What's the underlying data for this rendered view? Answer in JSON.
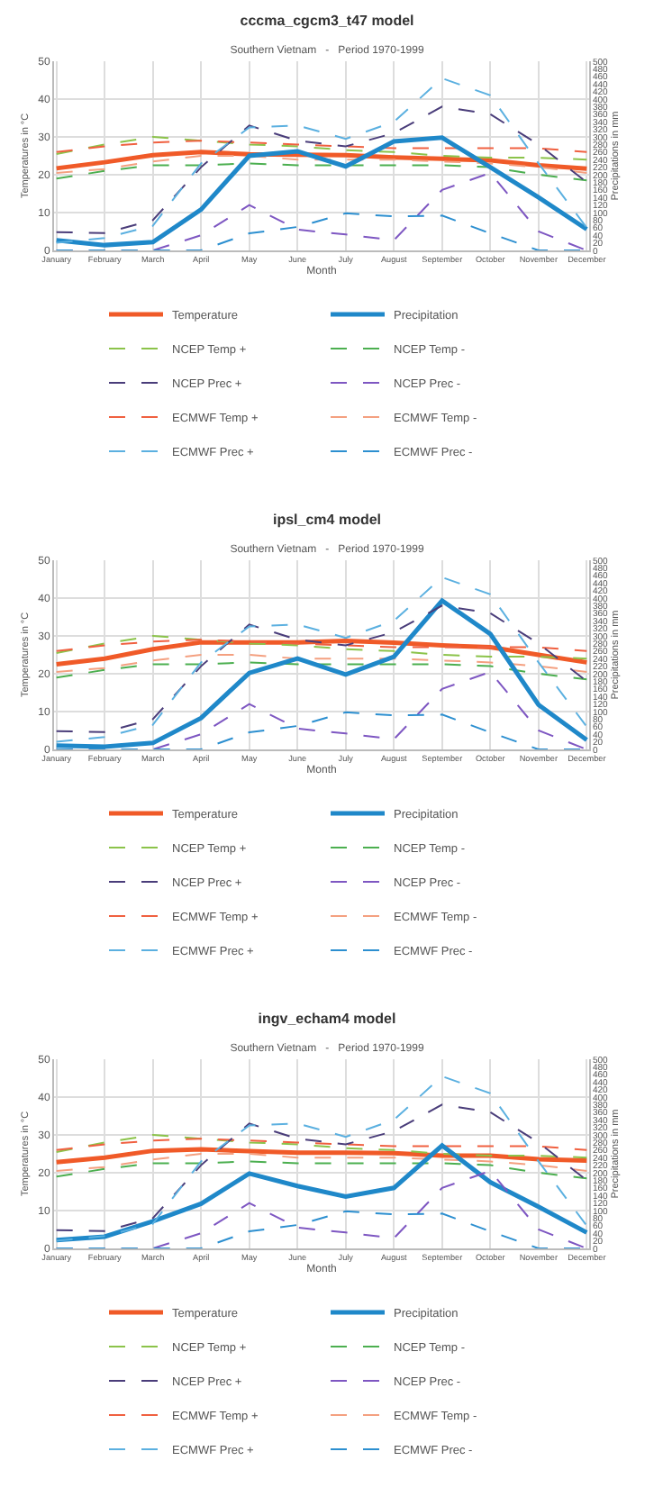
{
  "chart_data": [
    {
      "type": "line",
      "title": "cccma_cgcm3_t47 model",
      "subtitle": "Southern Vietnam   -   Period 1970-1999",
      "xlabel": "Month",
      "ylabel": "Temperatures in °C",
      "y2label": "Precipitations in mm",
      "categories": [
        "January",
        "February",
        "March",
        "April",
        "May",
        "June",
        "July",
        "August",
        "September",
        "October",
        "November",
        "December"
      ],
      "ylim": [
        0,
        50
      ],
      "yticks": [
        0,
        10,
        20,
        30,
        40,
        50
      ],
      "y2lim": [
        0,
        500
      ],
      "y2ticks": [
        0,
        20,
        40,
        60,
        80,
        100,
        120,
        140,
        160,
        180,
        200,
        220,
        240,
        260,
        280,
        300,
        320,
        340,
        360,
        380,
        400,
        420,
        440,
        460,
        480,
        500
      ],
      "grid": true,
      "legend": "bottom",
      "line_style": "solid",
      "series": [
        {
          "name": "Temperature",
          "color": "#f05a28",
          "values": [
            21.7,
            23.3,
            25.2,
            26,
            25.4,
            25.3,
            25.2,
            24.6,
            24.2,
            23.8,
            22.5,
            21.6
          ]
        },
        {
          "name": "Precipitation",
          "color": "#1f88c9",
          "axis": "y2",
          "values": [
            27,
            14,
            22,
            108,
            250,
            262,
            222,
            288,
            298,
            220,
            140,
            56
          ]
        },
        {
          "name": "NCEP Temp +",
          "color": "#8bc34a",
          "line_style": "dashed",
          "values": [
            25.5,
            28,
            30,
            29,
            28,
            27.5,
            26.5,
            26,
            25,
            24.5,
            24.5,
            24
          ]
        },
        {
          "name": "NCEP Temp -",
          "color": "#4caf50",
          "line_style": "dashed",
          "values": [
            19,
            21,
            22.5,
            22.5,
            23,
            22.5,
            22.5,
            22.5,
            22.5,
            22,
            20,
            18.5
          ]
        },
        {
          "name": "NCEP Prec +",
          "color": "#4a3d7a",
          "axis": "y2",
          "line_style": "dashed",
          "values": [
            48,
            46,
            80,
            220,
            330,
            290,
            275,
            310,
            380,
            360,
            280,
            180
          ]
        },
        {
          "name": "NCEP Prec -",
          "color": "#7e57c2",
          "axis": "y2",
          "line_style": "dashed",
          "values": [
            0,
            0,
            0,
            40,
            120,
            55,
            42,
            27,
            160,
            205,
            50,
            0
          ]
        },
        {
          "name": "ECMWF Temp +",
          "color": "#f06040",
          "line_style": "dashed",
          "values": [
            26,
            27.5,
            28.5,
            29,
            28.5,
            28,
            27.5,
            27,
            27,
            27,
            27,
            26
          ]
        },
        {
          "name": "ECMWF Temp -",
          "color": "#f4a080",
          "line_style": "dashed",
          "values": [
            20.5,
            21.5,
            23.5,
            25,
            25,
            24,
            24,
            24,
            23.5,
            23,
            22,
            20.5
          ]
        },
        {
          "name": "ECMWF Prec +",
          "color": "#5bb0e0",
          "axis": "y2",
          "line_style": "dashed",
          "values": [
            20,
            33,
            65,
            230,
            325,
            330,
            295,
            340,
            455,
            410,
            230,
            60
          ]
        },
        {
          "name": "ECMWF Prec -",
          "color": "#2c8fd0",
          "axis": "y2",
          "line_style": "dashed",
          "values": [
            0,
            0,
            0,
            0,
            45,
            62,
            98,
            90,
            92,
            45,
            0,
            0
          ]
        }
      ]
    },
    {
      "type": "line",
      "title": "ipsl_cm4 model",
      "subtitle": "Southern Vietnam   -   Period 1970-1999",
      "xlabel": "Month",
      "ylabel": "Temperatures in °C",
      "y2label": "Precipitations in mm",
      "categories": [
        "January",
        "February",
        "March",
        "April",
        "May",
        "June",
        "July",
        "August",
        "September",
        "October",
        "November",
        "December"
      ],
      "ylim": [
        0,
        50
      ],
      "yticks": [
        0,
        10,
        20,
        30,
        40,
        50
      ],
      "y2lim": [
        0,
        500
      ],
      "y2ticks": [
        0,
        20,
        40,
        60,
        80,
        100,
        120,
        140,
        160,
        180,
        200,
        220,
        240,
        260,
        280,
        300,
        320,
        340,
        360,
        380,
        400,
        420,
        440,
        460,
        480,
        500
      ],
      "grid": true,
      "legend": "bottom",
      "line_style": "solid",
      "series": [
        {
          "name": "Temperature",
          "color": "#f05a28",
          "values": [
            22.5,
            24,
            26.5,
            28.3,
            28.3,
            28.3,
            28.7,
            28.2,
            27.5,
            27,
            25,
            23
          ]
        },
        {
          "name": "Precipitation",
          "color": "#1f88c9",
          "axis": "y2",
          "values": [
            10,
            7,
            17,
            83,
            202,
            240,
            198,
            245,
            393,
            305,
            118,
            25
          ]
        },
        {
          "name": "NCEP Temp +",
          "color": "#8bc34a",
          "line_style": "dashed",
          "values": [
            25.5,
            28,
            30,
            29,
            28,
            27.5,
            26.5,
            26,
            25,
            24.5,
            24.5,
            24
          ]
        },
        {
          "name": "NCEP Temp -",
          "color": "#4caf50",
          "line_style": "dashed",
          "values": [
            19,
            21,
            22.5,
            22.5,
            23,
            22.5,
            22.5,
            22.5,
            22.5,
            22,
            20,
            18.5
          ]
        },
        {
          "name": "NCEP Prec +",
          "color": "#4a3d7a",
          "axis": "y2",
          "line_style": "dashed",
          "values": [
            48,
            46,
            80,
            220,
            330,
            290,
            275,
            310,
            380,
            360,
            280,
            180
          ]
        },
        {
          "name": "NCEP Prec -",
          "color": "#7e57c2",
          "axis": "y2",
          "line_style": "dashed",
          "values": [
            0,
            0,
            0,
            40,
            120,
            55,
            42,
            27,
            160,
            205,
            50,
            0
          ]
        },
        {
          "name": "ECMWF Temp +",
          "color": "#f06040",
          "line_style": "dashed",
          "values": [
            26,
            27.5,
            28.5,
            29,
            28.5,
            28,
            27.5,
            27,
            27,
            27,
            27,
            26
          ]
        },
        {
          "name": "ECMWF Temp -",
          "color": "#f4a080",
          "line_style": "dashed",
          "values": [
            20.5,
            21.5,
            23.5,
            25,
            25,
            24,
            24,
            24,
            23.5,
            23,
            22,
            20.5
          ]
        },
        {
          "name": "ECMWF Prec +",
          "color": "#5bb0e0",
          "axis": "y2",
          "line_style": "dashed",
          "values": [
            20,
            33,
            65,
            230,
            325,
            330,
            295,
            340,
            455,
            410,
            230,
            60
          ]
        },
        {
          "name": "ECMWF Prec -",
          "color": "#2c8fd0",
          "axis": "y2",
          "line_style": "dashed",
          "values": [
            0,
            0,
            0,
            0,
            45,
            62,
            98,
            90,
            92,
            45,
            0,
            0
          ]
        }
      ]
    },
    {
      "type": "line",
      "title": "ingv_echam4 model",
      "subtitle": "Southern Vietnam   -   Period 1970-1999",
      "xlabel": "Month",
      "ylabel": "Temperatures in °C",
      "y2label": "Precipitations in mm",
      "categories": [
        "January",
        "February",
        "March",
        "April",
        "May",
        "June",
        "July",
        "August",
        "September",
        "October",
        "November",
        "December"
      ],
      "ylim": [
        0,
        50
      ],
      "yticks": [
        0,
        10,
        20,
        30,
        40,
        50
      ],
      "y2lim": [
        0,
        500
      ],
      "y2ticks": [
        0,
        20,
        40,
        60,
        80,
        100,
        120,
        140,
        160,
        180,
        200,
        220,
        240,
        260,
        280,
        300,
        320,
        340,
        360,
        380,
        400,
        420,
        440,
        460,
        480,
        500
      ],
      "grid": true,
      "legend": "bottom",
      "line_style": "solid",
      "series": [
        {
          "name": "Temperature",
          "color": "#f05a28",
          "values": [
            22.8,
            24,
            25.8,
            26.2,
            25.7,
            25.3,
            25.3,
            25.2,
            24.5,
            24.5,
            23.6,
            23.2
          ]
        },
        {
          "name": "Precipitation",
          "color": "#1f88c9",
          "axis": "y2",
          "values": [
            22,
            31,
            72,
            118,
            198,
            165,
            137,
            160,
            272,
            175,
            110,
            42
          ]
        },
        {
          "name": "NCEP Temp +",
          "color": "#8bc34a",
          "line_style": "dashed",
          "values": [
            25.5,
            28,
            30,
            29,
            28,
            27.5,
            26.5,
            26,
            25,
            24.5,
            24.5,
            24
          ]
        },
        {
          "name": "NCEP Temp -",
          "color": "#4caf50",
          "line_style": "dashed",
          "values": [
            19,
            21,
            22.5,
            22.5,
            23,
            22.5,
            22.5,
            22.5,
            22.5,
            22,
            20,
            18.5
          ]
        },
        {
          "name": "NCEP Prec +",
          "color": "#4a3d7a",
          "axis": "y2",
          "line_style": "dashed",
          "values": [
            48,
            46,
            80,
            220,
            330,
            290,
            275,
            310,
            380,
            360,
            280,
            180
          ]
        },
        {
          "name": "NCEP Prec -",
          "color": "#7e57c2",
          "axis": "y2",
          "line_style": "dashed",
          "values": [
            0,
            0,
            0,
            40,
            120,
            55,
            42,
            27,
            160,
            205,
            50,
            0
          ]
        },
        {
          "name": "ECMWF Temp +",
          "color": "#f06040",
          "line_style": "dashed",
          "values": [
            26,
            27.5,
            28.5,
            29,
            28.5,
            28,
            27.5,
            27,
            27,
            27,
            27,
            26
          ]
        },
        {
          "name": "ECMWF Temp -",
          "color": "#f4a080",
          "line_style": "dashed",
          "values": [
            20.5,
            21.5,
            23.5,
            25,
            25,
            24,
            24,
            24,
            23.5,
            23,
            22,
            20.5
          ]
        },
        {
          "name": "ECMWF Prec +",
          "color": "#5bb0e0",
          "axis": "y2",
          "line_style": "dashed",
          "values": [
            20,
            33,
            65,
            230,
            325,
            330,
            295,
            340,
            455,
            410,
            230,
            60
          ]
        },
        {
          "name": "ECMWF Prec -",
          "color": "#2c8fd0",
          "axis": "y2",
          "line_style": "dashed",
          "values": [
            0,
            0,
            0,
            0,
            45,
            62,
            98,
            90,
            92,
            45,
            0,
            0
          ]
        }
      ]
    }
  ]
}
